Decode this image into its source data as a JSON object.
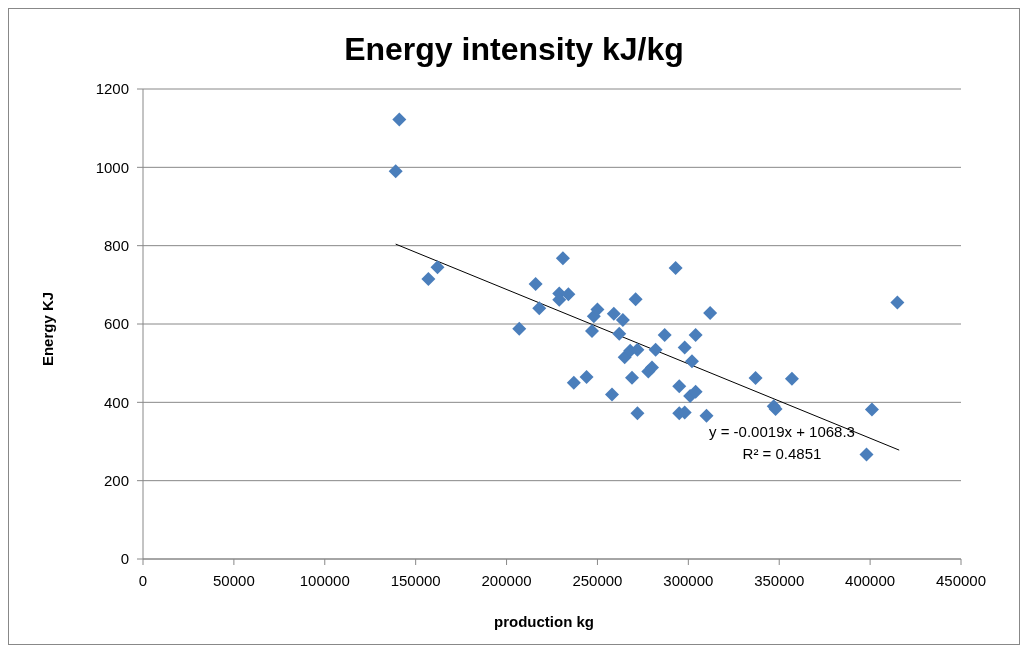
{
  "chart_data": {
    "type": "scatter",
    "title": "Energy intensity kJ/kg",
    "xlabel": "production kg",
    "ylabel": "Energy KJ",
    "xlim": [
      0,
      450000
    ],
    "xticks": [
      0,
      50000,
      100000,
      150000,
      200000,
      250000,
      300000,
      350000,
      400000,
      450000
    ],
    "ylim": [
      0,
      1200
    ],
    "yticks": [
      0,
      200,
      400,
      600,
      800,
      1000,
      1200
    ],
    "grid": "y",
    "legend": false,
    "annotations": [
      "y = -0.0019x + 1068.3",
      "R² = 0.4851"
    ],
    "series": [
      {
        "color": "#4a7ebb",
        "marker": "diamond",
        "x": [
          141000,
          139000,
          157000,
          162000,
          207000,
          216000,
          218000,
          231000,
          229000,
          229000,
          234000,
          237000,
          244000,
          247000,
          248000,
          250000,
          258000,
          259000,
          262000,
          264000,
          265000,
          268000,
          269000,
          271000,
          272000,
          272000,
          278000,
          280000,
          282000,
          287000,
          293000,
          295000,
          295000,
          298000,
          298000,
          302000,
          301000,
          304000,
          304000,
          310000,
          312000,
          337000,
          347000,
          348000,
          357000,
          398000,
          401000,
          415000
        ],
        "values": [
          1122,
          990,
          715,
          745,
          588,
          702,
          640,
          768,
          678,
          662,
          676,
          450,
          465,
          582,
          620,
          637,
          420,
          626,
          575,
          610,
          515,
          532,
          463,
          663,
          534,
          372,
          479,
          489,
          534,
          572,
          743,
          441,
          372,
          540,
          374,
          505,
          416,
          427,
          572,
          366,
          628,
          462,
          390,
          383,
          460,
          267,
          382,
          655
        ]
      },
      {
        "type": "line",
        "color": "#000000",
        "marker": "none",
        "x": [
          139000,
          416000
        ],
        "values": [
          804,
          278
        ]
      }
    ]
  }
}
